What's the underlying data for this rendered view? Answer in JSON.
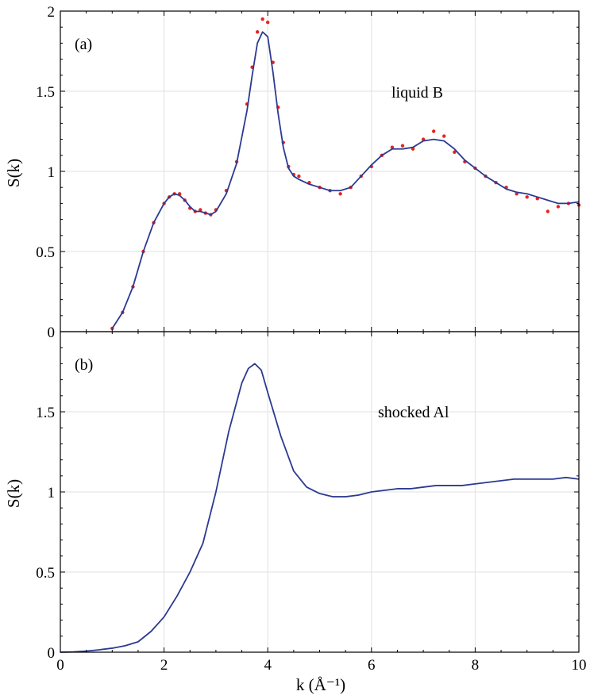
{
  "chart_data": [
    {
      "type": "line",
      "panel_label": "(a)",
      "annotation": "liquid B",
      "xlabel": "",
      "ylabel": "S(k)",
      "xlim": [
        0,
        10
      ],
      "ylim": [
        0,
        2
      ],
      "x_ticks": [
        0,
        2,
        4,
        6,
        8,
        10
      ],
      "y_ticks": [
        0,
        0.5,
        1,
        1.5,
        2
      ],
      "y_tick_labels": [
        "0",
        "0.5",
        "1",
        "1.5",
        "2"
      ],
      "grid": true,
      "series": [
        {
          "kind": "scatter",
          "color": "#e8231e",
          "x": [
            1.0,
            1.2,
            1.4,
            1.6,
            1.8,
            2.0,
            2.1,
            2.2,
            2.3,
            2.4,
            2.5,
            2.6,
            2.7,
            2.8,
            2.9,
            3.0,
            3.2,
            3.4,
            3.6,
            3.7,
            3.8,
            3.9,
            4.0,
            4.1,
            4.2,
            4.3,
            4.4,
            4.5,
            4.6,
            4.8,
            5.0,
            5.2,
            5.4,
            5.6,
            5.8,
            6.0,
            6.2,
            6.4,
            6.6,
            6.8,
            7.0,
            7.2,
            7.4,
            7.6,
            7.8,
            8.0,
            8.2,
            8.4,
            8.6,
            8.8,
            9.0,
            9.2,
            9.4,
            9.6,
            9.8,
            10.0
          ],
          "y": [
            0.02,
            0.12,
            0.28,
            0.5,
            0.68,
            0.8,
            0.84,
            0.86,
            0.86,
            0.82,
            0.77,
            0.75,
            0.76,
            0.74,
            0.73,
            0.76,
            0.88,
            1.06,
            1.42,
            1.65,
            1.87,
            1.95,
            1.93,
            1.68,
            1.4,
            1.18,
            1.03,
            0.98,
            0.97,
            0.93,
            0.9,
            0.88,
            0.86,
            0.9,
            0.97,
            1.03,
            1.1,
            1.15,
            1.16,
            1.14,
            1.2,
            1.25,
            1.22,
            1.12,
            1.06,
            1.02,
            0.97,
            0.93,
            0.9,
            0.86,
            0.84,
            0.83,
            0.75,
            0.78,
            0.8,
            0.79
          ]
        },
        {
          "kind": "line",
          "color": "#2b3a91",
          "x": [
            1.0,
            1.2,
            1.4,
            1.6,
            1.8,
            2.0,
            2.1,
            2.2,
            2.3,
            2.4,
            2.5,
            2.6,
            2.7,
            2.8,
            2.9,
            3.0,
            3.2,
            3.4,
            3.6,
            3.7,
            3.8,
            3.9,
            4.0,
            4.1,
            4.2,
            4.3,
            4.4,
            4.5,
            4.6,
            4.8,
            5.0,
            5.2,
            5.4,
            5.6,
            5.8,
            6.0,
            6.2,
            6.4,
            6.6,
            6.8,
            7.0,
            7.2,
            7.4,
            7.6,
            7.8,
            8.0,
            8.2,
            8.4,
            8.6,
            8.8,
            9.0,
            9.2,
            9.4,
            9.6,
            9.8,
            10.0
          ],
          "y": [
            0.02,
            0.12,
            0.28,
            0.5,
            0.68,
            0.8,
            0.84,
            0.86,
            0.85,
            0.82,
            0.78,
            0.75,
            0.75,
            0.74,
            0.73,
            0.75,
            0.86,
            1.05,
            1.38,
            1.6,
            1.8,
            1.87,
            1.84,
            1.62,
            1.36,
            1.15,
            1.02,
            0.97,
            0.95,
            0.92,
            0.9,
            0.88,
            0.88,
            0.9,
            0.97,
            1.04,
            1.1,
            1.14,
            1.14,
            1.15,
            1.19,
            1.2,
            1.19,
            1.14,
            1.07,
            1.02,
            0.97,
            0.93,
            0.89,
            0.87,
            0.86,
            0.84,
            0.82,
            0.8,
            0.8,
            0.81
          ]
        }
      ]
    },
    {
      "type": "line",
      "panel_label": "(b)",
      "annotation": "shocked Al",
      "xlabel": "k (Å⁻¹)",
      "ylabel": "S(k)",
      "xlim": [
        0,
        10
      ],
      "ylim": [
        0,
        2
      ],
      "x_ticks": [
        0,
        2,
        4,
        6,
        8,
        10
      ],
      "x_tick_labels": [
        "0",
        "2",
        "4",
        "6",
        "8",
        "10"
      ],
      "y_ticks": [
        0,
        0.5,
        1,
        1.5
      ],
      "y_tick_labels": [
        "0",
        "0.5",
        "1",
        "1.5"
      ],
      "grid": true,
      "series": [
        {
          "kind": "line",
          "color": "#2b3a91",
          "x": [
            0,
            0.25,
            0.5,
            0.75,
            1.0,
            1.25,
            1.5,
            1.75,
            2.0,
            2.25,
            2.5,
            2.75,
            3.0,
            3.25,
            3.5,
            3.625,
            3.75,
            3.875,
            4.0,
            4.25,
            4.5,
            4.75,
            5.0,
            5.25,
            5.5,
            5.75,
            6.0,
            6.25,
            6.5,
            6.75,
            7.0,
            7.25,
            7.5,
            7.75,
            8.0,
            8.25,
            8.5,
            8.75,
            9.0,
            9.25,
            9.5,
            9.75,
            10.0
          ],
          "y": [
            0.0,
            0.002,
            0.007,
            0.015,
            0.025,
            0.04,
            0.065,
            0.13,
            0.22,
            0.35,
            0.5,
            0.68,
            1.0,
            1.38,
            1.68,
            1.77,
            1.8,
            1.76,
            1.62,
            1.35,
            1.13,
            1.03,
            0.99,
            0.97,
            0.97,
            0.98,
            1.0,
            1.01,
            1.02,
            1.02,
            1.03,
            1.04,
            1.04,
            1.04,
            1.05,
            1.06,
            1.07,
            1.08,
            1.08,
            1.08,
            1.08,
            1.09,
            1.08
          ]
        }
      ]
    }
  ]
}
